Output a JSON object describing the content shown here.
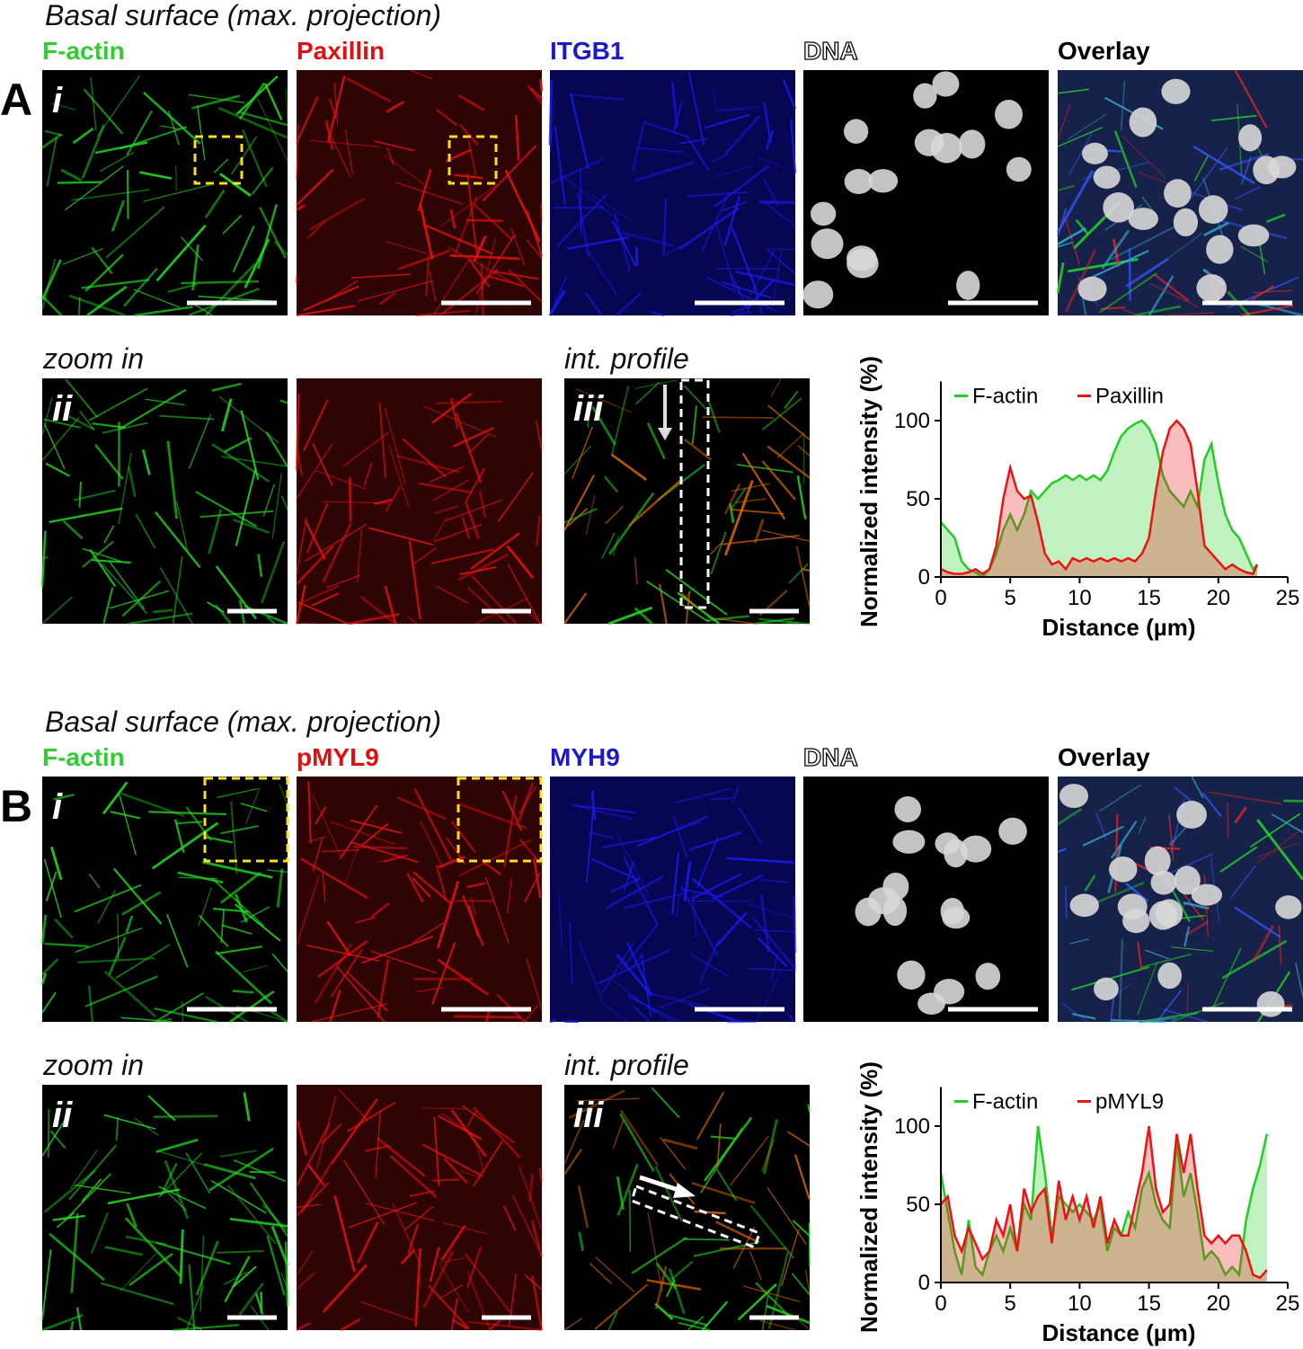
{
  "panel_a": {
    "label": "A",
    "heading": "Basal surface (max. projection)",
    "channels": [
      "F-actin",
      "Paxillin",
      "ITGB1",
      "DNA",
      "Overlay"
    ],
    "channel_colors": [
      "#33cc33",
      "#e01010",
      "#1a1acc",
      "#ffffff",
      "#000000"
    ],
    "row_labels": [
      "i",
      "ii",
      "iii"
    ],
    "zoom_heading": "zoom in",
    "profile_heading": "int. profile"
  },
  "panel_b": {
    "label": "B",
    "heading": "Basal surface (max. projection)",
    "channels": [
      "F-actin",
      "pMYL9",
      "MYH9",
      "DNA",
      "Overlay"
    ],
    "channel_colors": [
      "#33cc33",
      "#e01010",
      "#1a1acc",
      "#ffffff",
      "#000000"
    ],
    "row_labels": [
      "i",
      "ii",
      "iii"
    ],
    "zoom_heading": "zoom in",
    "profile_heading": "int. profile"
  },
  "chart_data": [
    {
      "type": "line",
      "area": true,
      "xlabel": "Distance (µm)",
      "ylabel": "Normalized intensity (%)",
      "x": [
        0,
        0.5,
        1,
        1.5,
        2,
        2.5,
        3,
        3.5,
        4,
        4.5,
        5,
        5.5,
        6,
        6.5,
        7,
        7.5,
        8,
        8.5,
        9,
        9.5,
        10,
        10.5,
        11,
        11.5,
        12,
        12.5,
        13,
        13.5,
        14,
        14.5,
        15,
        15.5,
        16,
        16.5,
        17,
        17.5,
        18,
        18.5,
        19,
        19.5,
        20,
        20.5,
        21,
        21.5,
        22,
        22.5,
        22.8
      ],
      "series": [
        {
          "name": "F-actin",
          "color": "#22cc22",
          "values": [
            35,
            30,
            25,
            10,
            5,
            3,
            0,
            5,
            15,
            30,
            40,
            30,
            40,
            55,
            50,
            55,
            60,
            62,
            65,
            62,
            65,
            62,
            65,
            62,
            68,
            80,
            90,
            95,
            98,
            100,
            95,
            85,
            65,
            55,
            50,
            45,
            55,
            45,
            75,
            85,
            60,
            40,
            30,
            25,
            15,
            5,
            8
          ]
        },
        {
          "name": "Paxillin",
          "color": "#ee1111",
          "values": [
            5,
            3,
            2,
            2,
            3,
            5,
            2,
            5,
            20,
            50,
            70,
            55,
            50,
            52,
            35,
            15,
            8,
            10,
            5,
            12,
            10,
            12,
            10,
            12,
            10,
            12,
            10,
            12,
            10,
            15,
            25,
            55,
            80,
            95,
            100,
            95,
            85,
            55,
            20,
            15,
            10,
            5,
            8,
            5,
            3,
            2,
            8
          ]
        }
      ],
      "xlim": [
        0,
        25
      ],
      "xticks": [
        0,
        5,
        10,
        15,
        20,
        25
      ],
      "ylim": [
        0,
        125
      ],
      "yticks": [
        0,
        50,
        100
      ],
      "legend": "top"
    },
    {
      "type": "line",
      "area": true,
      "xlabel": "Distance (µm)",
      "ylabel": "Normalized intensity (%)",
      "x": [
        0,
        0.5,
        1,
        1.5,
        2,
        2.5,
        3,
        3.5,
        4,
        4.5,
        5,
        5.5,
        6,
        6.5,
        7,
        7.5,
        8,
        8.5,
        9,
        9.5,
        10,
        10.5,
        11,
        11.5,
        12,
        12.5,
        13,
        13.5,
        14,
        14.5,
        15,
        15.5,
        16,
        16.5,
        17,
        17.5,
        18,
        18.5,
        19,
        19.5,
        20,
        20.5,
        21,
        21.5,
        22,
        22.5,
        23,
        23.5
      ],
      "series": [
        {
          "name": "F-actin",
          "color": "#22cc22",
          "values": [
            70,
            45,
            20,
            5,
            40,
            10,
            5,
            20,
            30,
            20,
            35,
            20,
            50,
            40,
            100,
            70,
            30,
            55,
            50,
            45,
            50,
            45,
            40,
            50,
            20,
            35,
            30,
            45,
            35,
            60,
            70,
            50,
            40,
            35,
            90,
            55,
            70,
            45,
            15,
            20,
            15,
            5,
            10,
            5,
            40,
            60,
            75,
            95
          ]
        },
        {
          "name": "pMYL9",
          "color": "#ee1111",
          "values": [
            50,
            55,
            30,
            20,
            35,
            25,
            15,
            20,
            40,
            30,
            50,
            20,
            60,
            45,
            55,
            60,
            25,
            65,
            40,
            55,
            40,
            55,
            35,
            55,
            25,
            40,
            30,
            30,
            50,
            70,
            100,
            60,
            45,
            50,
            95,
            70,
            95,
            60,
            30,
            25,
            30,
            25,
            30,
            30,
            20,
            5,
            3,
            8
          ]
        }
      ],
      "xlim": [
        0,
        25
      ],
      "xticks": [
        0,
        5,
        10,
        15,
        20,
        25
      ],
      "ylim": [
        0,
        125
      ],
      "yticks": [
        0,
        50,
        100
      ],
      "legend": "top"
    }
  ]
}
